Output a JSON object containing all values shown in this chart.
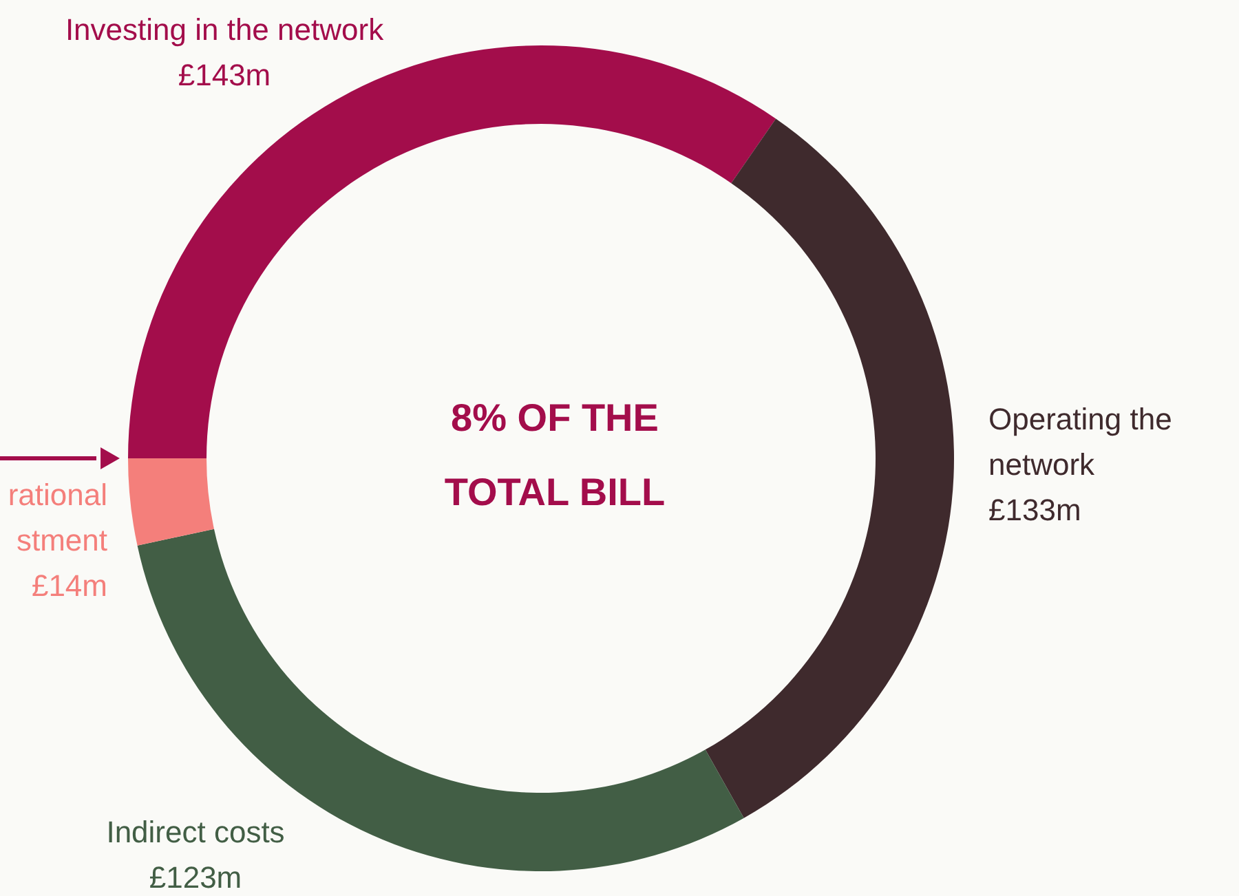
{
  "chart_data": {
    "type": "donut",
    "categories": [
      "Investing in the network",
      "Operating the network",
      "Indirect costs",
      "rational stment"
    ],
    "values": [
      143,
      133,
      123,
      14
    ],
    "colors": [
      "#a30d4b",
      "#3f2a2d",
      "#425e45",
      "#f47f7b"
    ],
    "value_labels": [
      "£143m",
      "£133m",
      "£123m",
      "£14m"
    ],
    "annotations": [
      "8% OF THE TOTAL BILL"
    ]
  }
}
